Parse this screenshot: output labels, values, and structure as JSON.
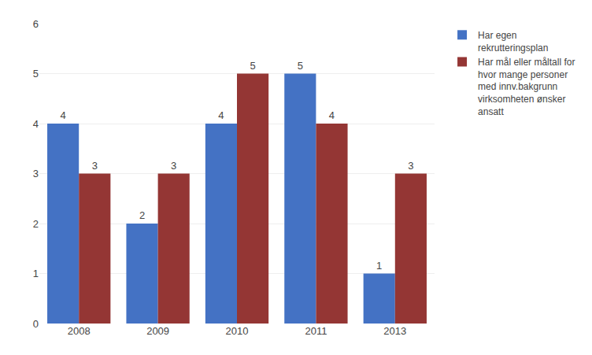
{
  "chart_data": {
    "type": "bar",
    "categories": [
      "2008",
      "2009",
      "2010",
      "2011",
      "2013"
    ],
    "series": [
      {
        "name": "Har egen\nrekrutteringsplan",
        "color": "#4472C4",
        "values": [
          4,
          2,
          4,
          5,
          1
        ]
      },
      {
        "name": "Har mål eller måltall for\nhvor mange personer\nmed innv.bakgrunn\nvirksomheten ønsker\nansatt",
        "color": "#943634",
        "values": [
          3,
          3,
          5,
          4,
          3
        ]
      }
    ],
    "ylim": [
      0,
      6
    ],
    "yticks": [
      0,
      1,
      2,
      3,
      4,
      5,
      6
    ],
    "grid": true,
    "legend": "upper right",
    "data_labels": true
  }
}
